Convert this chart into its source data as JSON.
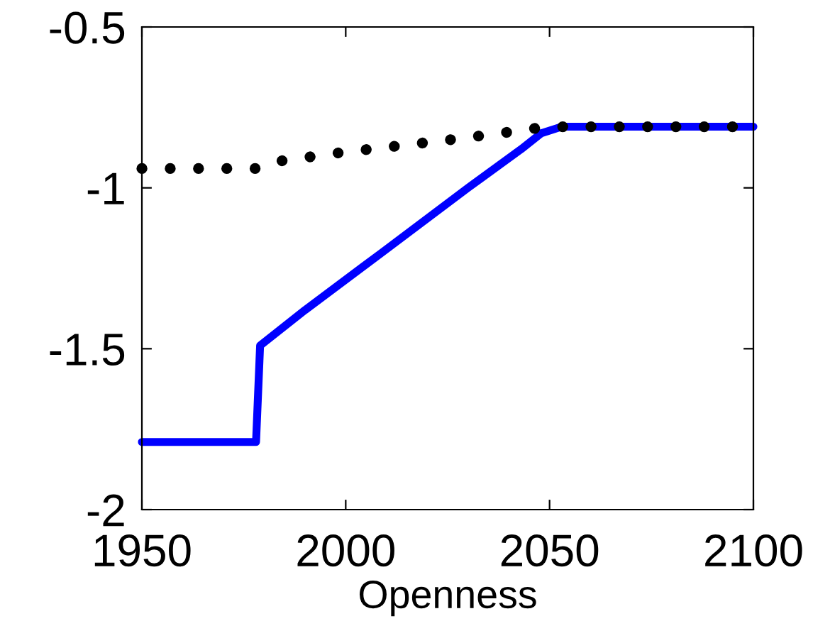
{
  "chart_data": {
    "type": "line",
    "xlabel": "Openness",
    "xlim": [
      1950,
      2100
    ],
    "xticks": [
      1950,
      2000,
      2050,
      2100
    ],
    "ylim": [
      -2,
      -0.5
    ],
    "yticks": [
      -2,
      -1.5,
      -1,
      -0.5
    ],
    "grid": false,
    "legend": false,
    "series": [
      {
        "color": "#0000ff",
        "line_style": "solid",
        "x": [
          1950,
          1978,
          1979,
          1990,
          2009,
          2030,
          2043,
          2048,
          2053,
          2100
        ],
        "values": [
          -1.79,
          -1.79,
          -1.49,
          -1.38,
          -1.2,
          -1.0,
          -0.88,
          -0.83,
          -0.81,
          -0.81
        ]
      },
      {
        "color": "#000000",
        "line_style": "dotted",
        "x": [
          1950,
          1978,
          1982,
          1999,
          2026,
          2044,
          2049,
          2100
        ],
        "values": [
          -0.94,
          -0.94,
          -0.92,
          -0.89,
          -0.85,
          -0.82,
          -0.81,
          -0.81
        ]
      }
    ]
  }
}
